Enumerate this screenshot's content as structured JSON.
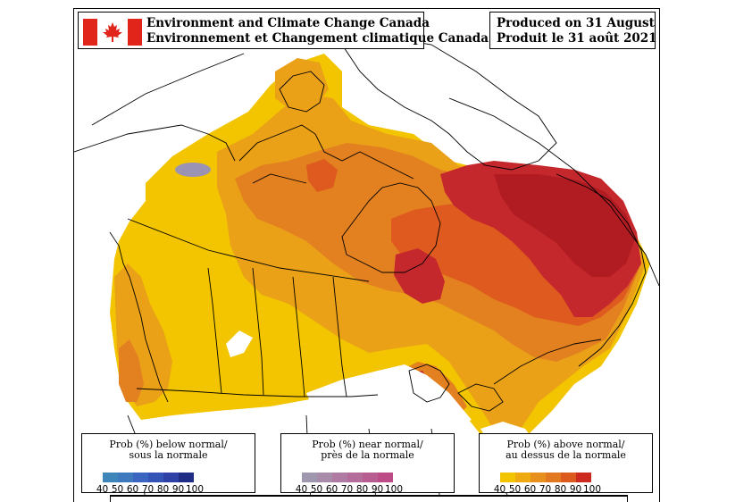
{
  "header": {
    "agency_en": "Environment and Climate Change Canada",
    "agency_fr": "Environnement et Changement climatique Canada",
    "produced_en": "Produced on 31 August 2021",
    "produced_fr": "Produit le 31 août 2021"
  },
  "legend": {
    "below": {
      "title_en": "Prob (%) below normal/",
      "title_fr": "sous la normale",
      "ticks": [
        "40",
        "50",
        "60",
        "70",
        "80",
        "90",
        "100"
      ],
      "colors": [
        "#3e86b9",
        "#3e78bd",
        "#3b65c0",
        "#3353b6",
        "#2f41a6",
        "#1f2d86"
      ]
    },
    "near": {
      "title_en": "Prob (%) near normal/",
      "title_fr": "près de la normale",
      "ticks": [
        "40",
        "50",
        "60",
        "70",
        "80",
        "90",
        "100"
      ],
      "colors": [
        "#9f97ae",
        "#a88aa9",
        "#b07ba3",
        "#b46c9a",
        "#b75d90",
        "#bc4c86"
      ]
    },
    "above": {
      "title_en": "Prob (%) above normal/",
      "title_fr": "au dessus de la normale",
      "ticks": [
        "40",
        "50",
        "60",
        "70",
        "80",
        "90",
        "100"
      ],
      "colors": [
        "#f2c500",
        "#eeaa10",
        "#e8901e",
        "#e27820",
        "#dc5a1e",
        "#cc2a1e"
      ]
    }
  }
}
